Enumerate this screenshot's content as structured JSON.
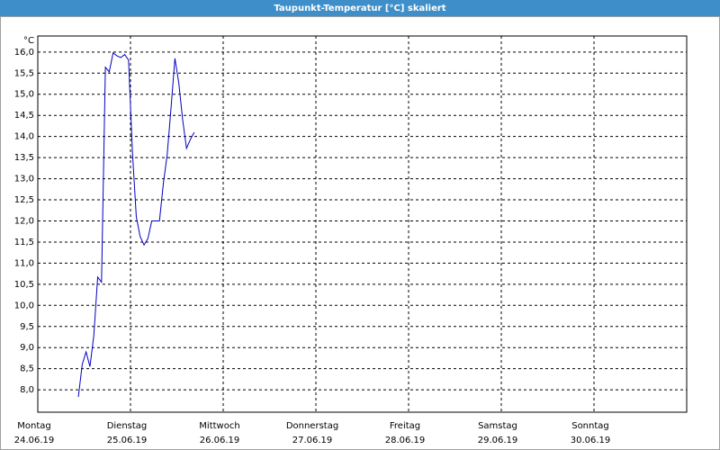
{
  "chart_data": {
    "type": "line",
    "title": "Taupunkt-Temperatur [°C] skaliert",
    "y_unit": "°C",
    "x": [
      10.5,
      11.5,
      12.5,
      13.5,
      14.5,
      15.5,
      16.5,
      17.5,
      18.5,
      19.5,
      20.5,
      21.5,
      22.5,
      23.5,
      24.5,
      25.5,
      26.5,
      27.5,
      28.5,
      29.5,
      30.5,
      31.5,
      32.5,
      33.5,
      34.5,
      35.5,
      36.5,
      37.5,
      38.5,
      39.5,
      40.5
    ],
    "series": [
      {
        "color": "#0000c0",
        "values": [
          7.83,
          8.6,
          8.9,
          8.55,
          9.28,
          10.67,
          10.55,
          15.64,
          15.53,
          15.98,
          15.91,
          15.87,
          15.94,
          15.81,
          13.63,
          12.1,
          11.63,
          11.43,
          11.58,
          12.0,
          12.0,
          12.0,
          12.88,
          13.57,
          14.68,
          15.85,
          15.27,
          14.4,
          13.72,
          13.93,
          14.1
        ]
      }
    ],
    "xlim": [
      0,
      168
    ],
    "xticks": [
      {
        "value": 0,
        "label": "Montag",
        "date": "24.06.19"
      },
      {
        "value": 24,
        "label": "Dienstag",
        "date": "25.06.19"
      },
      {
        "value": 48,
        "label": "Mittwoch",
        "date": "26.06.19"
      },
      {
        "value": 72,
        "label": "Donnerstag",
        "date": "27.06.19"
      },
      {
        "value": 96,
        "label": "Freitag",
        "date": "28.06.19"
      },
      {
        "value": 120,
        "label": "Samstag",
        "date": "29.06.19"
      },
      {
        "value": 144,
        "label": "Sonntag",
        "date": "30.06.19"
      }
    ],
    "ylim": [
      7.47,
      16.38
    ],
    "yticks": [
      {
        "value": 8,
        "label": "8,0"
      },
      {
        "value": 8.5,
        "label": "8,5"
      },
      {
        "value": 9,
        "label": "9,0"
      },
      {
        "value": 9.5,
        "label": "9,5"
      },
      {
        "value": 10,
        "label": "10,0"
      },
      {
        "value": 10.5,
        "label": "10,5"
      },
      {
        "value": 11,
        "label": "11,0"
      },
      {
        "value": 11.5,
        "label": "11,5"
      },
      {
        "value": 12,
        "label": "12,0"
      },
      {
        "value": 12.5,
        "label": "12,5"
      },
      {
        "value": 13,
        "label": "13,0"
      },
      {
        "value": 13.5,
        "label": "13,5"
      },
      {
        "value": 14,
        "label": "14,0"
      },
      {
        "value": 14.5,
        "label": "14,5"
      },
      {
        "value": 15,
        "label": "15,0"
      },
      {
        "value": 15.5,
        "label": "15,5"
      },
      {
        "value": 16,
        "label": "16,0"
      }
    ],
    "grid": true
  }
}
